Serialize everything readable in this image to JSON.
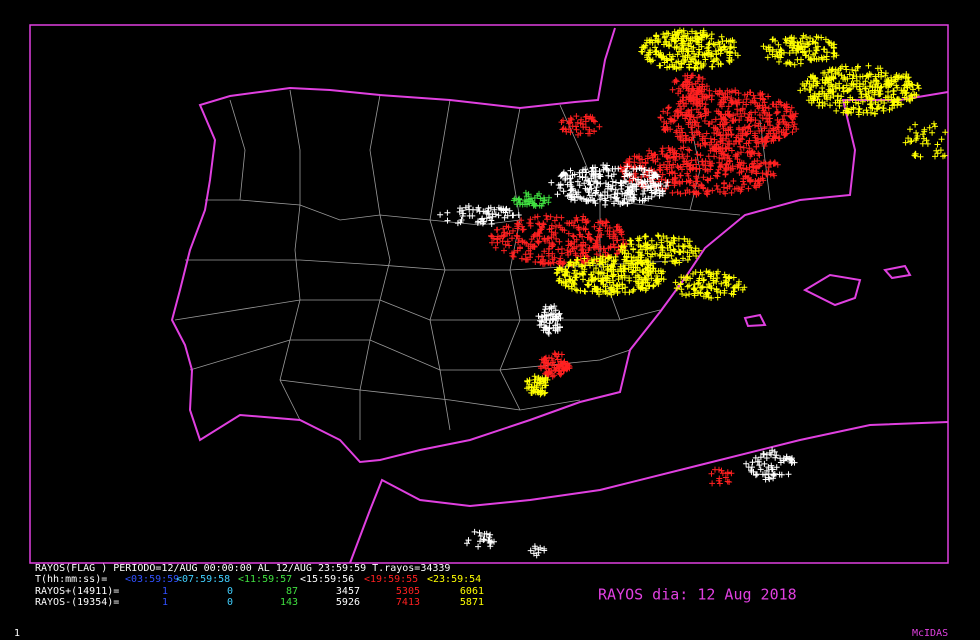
{
  "header": "RAYOS(FLAG ) PERIODO=12/AUG 00:00:00 AL 12/AUG 23:59:59  T.rayos=34339",
  "legend": {
    "time_label": "T(hh:mm:ss)=",
    "time_breaks": [
      "<03:59:59",
      "<07:59:58",
      "<11:59:57",
      "<15:59:56",
      "<19:59:55",
      "<23:59:54"
    ],
    "rows": [
      {
        "label": "RAYOS+(14911)=",
        "values": [
          1,
          0,
          87,
          3457,
          5305,
          6061
        ]
      },
      {
        "label": "RAYOS-(19354)=",
        "values": [
          1,
          0,
          143,
          5926,
          7413,
          5871
        ]
      }
    ]
  },
  "day_title": "RAYOS dia: 12 Aug 2018",
  "frame_number": "1",
  "software": "McIDAS"
}
